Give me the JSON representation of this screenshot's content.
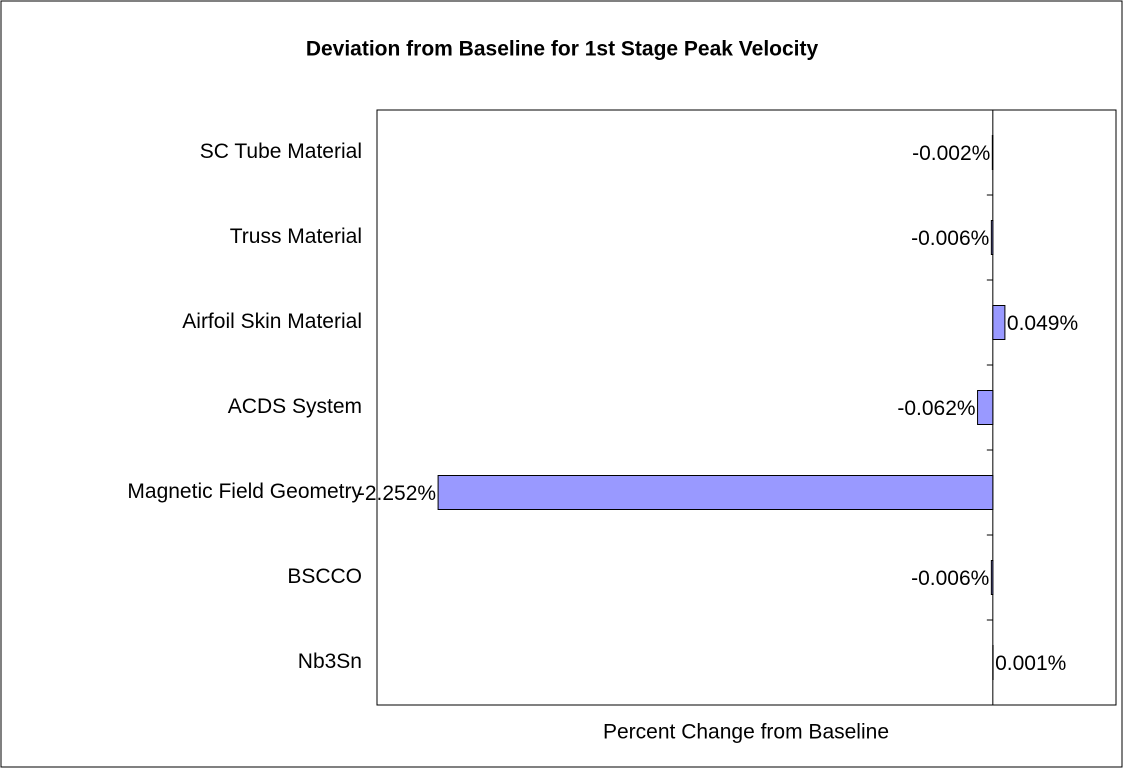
{
  "chart_data": {
    "type": "bar",
    "orientation": "horizontal",
    "title": "Deviation from Baseline for 1st Stage Peak Velocity",
    "xlabel": "Percent Change from Baseline",
    "categories": [
      "SC Tube Material",
      "Truss Material",
      "Airfoil Skin Material",
      "ACDS System",
      "Magnetic Field Geometry",
      "BSCCO",
      "Nb3Sn"
    ],
    "values": [
      -0.002,
      -0.006,
      0.049,
      -0.062,
      -2.252,
      -0.006,
      0.001
    ],
    "value_labels": [
      "-0.002%",
      "-0.006%",
      "0.049%",
      "-0.062%",
      "-2.252%",
      "-0.006%",
      "0.001%"
    ],
    "color": "#9999ff",
    "xlim": [
      -2.5,
      0.5
    ]
  }
}
